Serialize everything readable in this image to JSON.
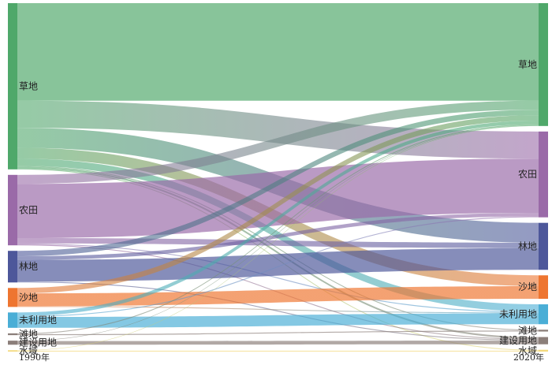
{
  "chart_data": {
    "type": "sankey",
    "title": "",
    "left_column_label": "1990年",
    "right_column_label": "2020年",
    "nodes": [
      {
        "name": "草地",
        "color": "#4fa86a"
      },
      {
        "name": "农田",
        "color": "#9a6aa8"
      },
      {
        "name": "林地",
        "color": "#4d579a"
      },
      {
        "name": "沙地",
        "color": "#ee7530"
      },
      {
        "name": "未利用地",
        "color": "#4aaed6"
      },
      {
        "name": "滩地",
        "color": "#8c7f7a"
      },
      {
        "name": "建设用地",
        "color": "#8c7f7a"
      },
      {
        "name": "水域",
        "color": "#f3d97c"
      }
    ],
    "links": [
      {
        "source": "草地",
        "target": "草地",
        "value": 108
      },
      {
        "source": "草地",
        "target": "农田",
        "value": 30
      },
      {
        "source": "草地",
        "target": "林地",
        "value": 22
      },
      {
        "source": "草地",
        "target": "沙地",
        "value": 12
      },
      {
        "source": "草地",
        "target": "未利用地",
        "value": 8
      },
      {
        "source": "草地",
        "target": "滩地",
        "value": 1
      },
      {
        "source": "草地",
        "target": "建设用地",
        "value": 2
      },
      {
        "source": "草地",
        "target": "水域",
        "value": 1
      },
      {
        "source": "农田",
        "target": "草地",
        "value": 10
      },
      {
        "source": "农田",
        "target": "农田",
        "value": 60
      },
      {
        "source": "农田",
        "target": "林地",
        "value": 6
      },
      {
        "source": "农田",
        "target": "未利用地",
        "value": 1
      },
      {
        "source": "农田",
        "target": "建设用地",
        "value": 1
      },
      {
        "source": "林地",
        "target": "草地",
        "value": 6
      },
      {
        "source": "林地",
        "target": "农田",
        "value": 4
      },
      {
        "source": "林地",
        "target": "林地",
        "value": 24
      },
      {
        "source": "林地",
        "target": "建设用地",
        "value": 1
      },
      {
        "source": "沙地",
        "target": "草地",
        "value": 6
      },
      {
        "source": "沙地",
        "target": "沙地",
        "value": 14
      },
      {
        "source": "沙地",
        "target": "未利用地",
        "value": 1
      },
      {
        "source": "未利用地",
        "target": "草地",
        "value": 4
      },
      {
        "source": "未利用地",
        "target": "农田",
        "value": 1
      },
      {
        "source": "未利用地",
        "target": "未利用地",
        "value": 12
      },
      {
        "source": "滩地",
        "target": "草地",
        "value": 1
      },
      {
        "source": "滩地",
        "target": "滩地",
        "value": 1
      },
      {
        "source": "建设用地",
        "target": "建设用地",
        "value": 4
      },
      {
        "source": "建设用地",
        "target": "草地",
        "value": 0.5
      },
      {
        "source": "水域",
        "target": "水域",
        "value": 1
      },
      {
        "source": "水域",
        "target": "草地",
        "value": 0.5
      }
    ]
  }
}
